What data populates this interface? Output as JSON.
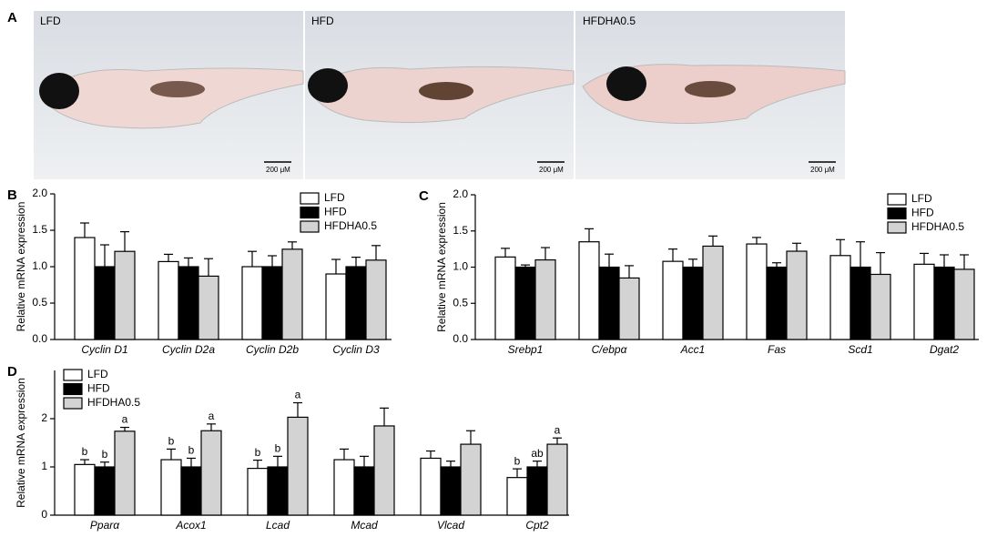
{
  "panel_a": {
    "label": "A",
    "images": [
      {
        "label": "LFD",
        "scale_bar": "200 μM"
      },
      {
        "label": "HFD",
        "scale_bar": "200 μM"
      },
      {
        "label": "HFDHA0.5",
        "scale_bar": "200 μM"
      }
    ]
  },
  "chart_data": [
    {
      "type": "bar",
      "label": "B",
      "ylabel": "Relative mRNA expression",
      "categories": [
        "Cyclin D1",
        "Cyclin D2a",
        "Cyclin D2b",
        "Cyclin D3"
      ],
      "ylim": [
        0,
        2
      ],
      "yticks": [
        {
          "value": 0,
          "label": "0.0"
        },
        0.5,
        {
          "value": 1,
          "label": "1.0"
        },
        1.5,
        {
          "value": 2,
          "label": "2.0"
        }
      ],
      "legend": "upper right",
      "grid": false,
      "series": [
        {
          "name": "LFD",
          "color": "#ffffff",
          "values": [
            1.4,
            1.07,
            1.0,
            0.9
          ],
          "errors": [
            0.2,
            0.1,
            0.21,
            0.2
          ]
        },
        {
          "name": "HFD",
          "color": "#000000",
          "values": [
            1.0,
            1.0,
            1.0,
            1.0
          ],
          "errors": [
            0.3,
            0.12,
            0.15,
            0.13
          ]
        },
        {
          "name": "HFDHA0.5",
          "color": "#d3d3d3",
          "values": [
            1.21,
            0.87,
            1.24,
            1.09
          ],
          "errors": [
            0.27,
            0.24,
            0.1,
            0.2
          ]
        }
      ]
    },
    {
      "type": "bar",
      "label": "C",
      "ylabel": "Relative mRNA expression",
      "categories": [
        "Srebp1",
        "C/ebpα",
        "Acc1",
        "Fas",
        "Scd1",
        "Dgat2"
      ],
      "ylim": [
        0,
        2
      ],
      "yticks": [
        {
          "value": 0,
          "label": "0.0"
        },
        0.5,
        {
          "value": 1,
          "label": "1.0"
        },
        1.5,
        {
          "value": 2,
          "label": "2.0"
        }
      ],
      "legend": "upper right",
      "grid": false,
      "series": [
        {
          "name": "LFD",
          "color": "#ffffff",
          "values": [
            1.14,
            1.35,
            1.08,
            1.32,
            1.16,
            1.04
          ],
          "errors": [
            0.12,
            0.18,
            0.17,
            0.09,
            0.22,
            0.15
          ]
        },
        {
          "name": "HFD",
          "color": "#000000",
          "values": [
            1.0,
            1.0,
            1.0,
            1.0,
            1.0,
            1.0
          ],
          "errors": [
            0.03,
            0.18,
            0.11,
            0.06,
            0.35,
            0.17
          ]
        },
        {
          "name": "HFDHA0.5",
          "color": "#d3d3d3",
          "values": [
            1.1,
            0.85,
            1.29,
            1.22,
            0.9,
            0.97
          ],
          "errors": [
            0.17,
            0.17,
            0.14,
            0.11,
            0.3,
            0.2
          ]
        }
      ]
    },
    {
      "type": "bar",
      "label": "D",
      "ylabel": "Relative mRNA expression",
      "categories": [
        "Pparα",
        "Acox1",
        "Lcad",
        "Mcad",
        "Vlcad",
        "Cpt2"
      ],
      "ylim": [
        0,
        3
      ],
      "yticks": [
        0,
        1,
        2
      ],
      "legend": "upper left",
      "grid": false,
      "series": [
        {
          "name": "LFD",
          "color": "#ffffff",
          "values": [
            1.05,
            1.15,
            0.97,
            1.15,
            1.18,
            0.78
          ],
          "errors": [
            0.1,
            0.22,
            0.17,
            0.22,
            0.15,
            0.18
          ],
          "annotations": [
            "b",
            "b",
            "b",
            null,
            null,
            "b"
          ]
        },
        {
          "name": "HFD",
          "color": "#000000",
          "values": [
            1.0,
            1.0,
            1.0,
            1.0,
            1.0,
            1.0
          ],
          "errors": [
            0.1,
            0.18,
            0.22,
            0.22,
            0.12,
            0.12
          ],
          "annotations": [
            "b",
            "b",
            "b",
            null,
            null,
            "ab"
          ]
        },
        {
          "name": "HFDHA0.5",
          "color": "#d3d3d3",
          "values": [
            1.74,
            1.75,
            2.03,
            1.85,
            1.47,
            1.47
          ],
          "errors": [
            0.08,
            0.14,
            0.3,
            0.37,
            0.28,
            0.13
          ],
          "annotations": [
            "a",
            "a",
            "a",
            null,
            null,
            "a"
          ]
        }
      ]
    }
  ]
}
